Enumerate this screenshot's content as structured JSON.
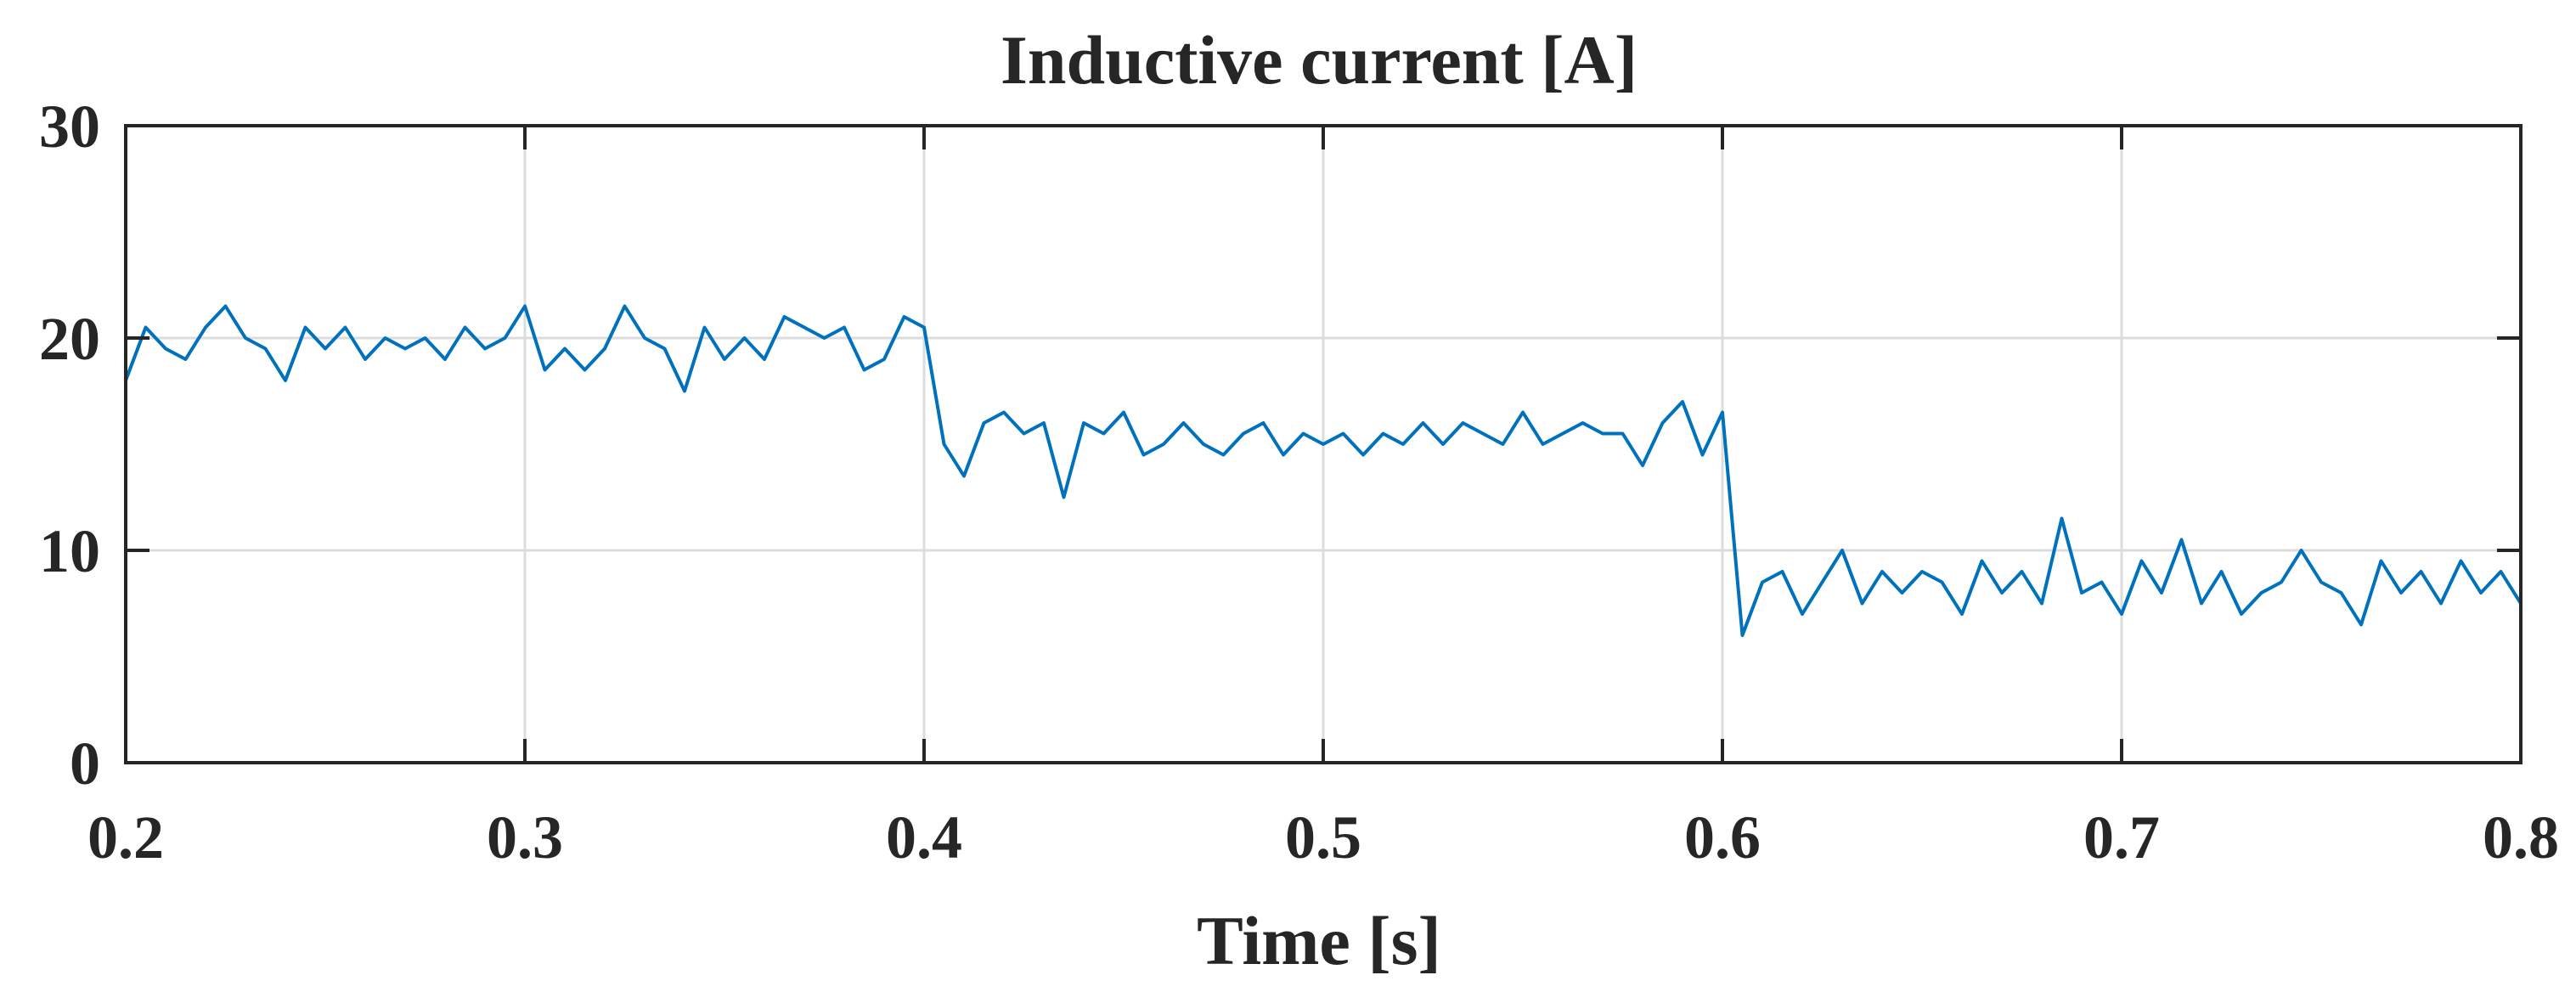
{
  "chart_data": {
    "type": "line",
    "title": "Inductive current [A]",
    "xlabel": "Time [s]",
    "ylabel": "",
    "xlim": [
      0.2,
      0.8
    ],
    "ylim": [
      0,
      30
    ],
    "xticks": [
      "0.2",
      "0.3",
      "0.4",
      "0.5",
      "0.6",
      "0.7",
      "0.8"
    ],
    "yticks": [
      "0",
      "10",
      "20",
      "30"
    ],
    "grid": true,
    "legend": "none",
    "line_color": "#0072BD",
    "series": [
      {
        "x": [
          0.2,
          0.205,
          0.21,
          0.215,
          0.22,
          0.225,
          0.23,
          0.235,
          0.24,
          0.245,
          0.25,
          0.255,
          0.26,
          0.265,
          0.27,
          0.275,
          0.28,
          0.285,
          0.29,
          0.295,
          0.3,
          0.305,
          0.31,
          0.315,
          0.32,
          0.325,
          0.33,
          0.335,
          0.34,
          0.345,
          0.35,
          0.355,
          0.36,
          0.365,
          0.37,
          0.375,
          0.38,
          0.385,
          0.39,
          0.395,
          0.4,
          0.405,
          0.41,
          0.415,
          0.42,
          0.425,
          0.43,
          0.435,
          0.44,
          0.445,
          0.45,
          0.455,
          0.46,
          0.465,
          0.47,
          0.475,
          0.48,
          0.485,
          0.49,
          0.495,
          0.5,
          0.505,
          0.51,
          0.515,
          0.52,
          0.525,
          0.53,
          0.535,
          0.54,
          0.545,
          0.55,
          0.555,
          0.56,
          0.565,
          0.57,
          0.575,
          0.58,
          0.585,
          0.59,
          0.595,
          0.6,
          0.605,
          0.61,
          0.615,
          0.62,
          0.625,
          0.63,
          0.635,
          0.64,
          0.645,
          0.65,
          0.655,
          0.66,
          0.665,
          0.67,
          0.675,
          0.68,
          0.685,
          0.69,
          0.695,
          0.7,
          0.705,
          0.71,
          0.715,
          0.72,
          0.725,
          0.73,
          0.735,
          0.74,
          0.745,
          0.75,
          0.755,
          0.76,
          0.765,
          0.77,
          0.775,
          0.78,
          0.785,
          0.79,
          0.795,
          0.8
        ],
        "y": [
          18.0,
          20.5,
          19.5,
          19.0,
          20.5,
          21.5,
          20.0,
          19.5,
          18.0,
          20.5,
          19.5,
          20.5,
          19.0,
          20.0,
          19.5,
          20.0,
          19.0,
          20.5,
          19.5,
          20.0,
          21.5,
          18.5,
          19.5,
          18.5,
          19.5,
          21.5,
          20.0,
          19.5,
          17.5,
          20.5,
          19.0,
          20.0,
          19.0,
          21.0,
          20.5,
          20.0,
          20.5,
          18.5,
          19.0,
          21.0,
          20.5,
          15.0,
          13.5,
          16.0,
          16.5,
          15.5,
          16.0,
          12.5,
          16.0,
          15.5,
          16.5,
          14.5,
          15.0,
          16.0,
          15.0,
          14.5,
          15.5,
          16.0,
          14.5,
          15.5,
          15.0,
          15.5,
          14.5,
          15.5,
          15.0,
          16.0,
          15.0,
          16.0,
          15.5,
          15.0,
          16.5,
          15.0,
          15.5,
          16.0,
          15.5,
          15.5,
          14.0,
          16.0,
          17.0,
          14.5,
          16.5,
          6.0,
          8.5,
          9.0,
          7.0,
          8.5,
          10.0,
          7.5,
          9.0,
          8.0,
          9.0,
          8.5,
          7.0,
          9.5,
          8.0,
          9.0,
          7.5,
          11.5,
          8.0,
          8.5,
          7.0,
          9.5,
          8.0,
          10.5,
          7.5,
          9.0,
          7.0,
          8.0,
          8.5,
          10.0,
          8.5,
          8.0,
          6.5,
          9.5,
          8.0,
          9.0,
          7.5,
          9.5,
          8.0,
          9.0,
          7.5
        ]
      }
    ]
  }
}
